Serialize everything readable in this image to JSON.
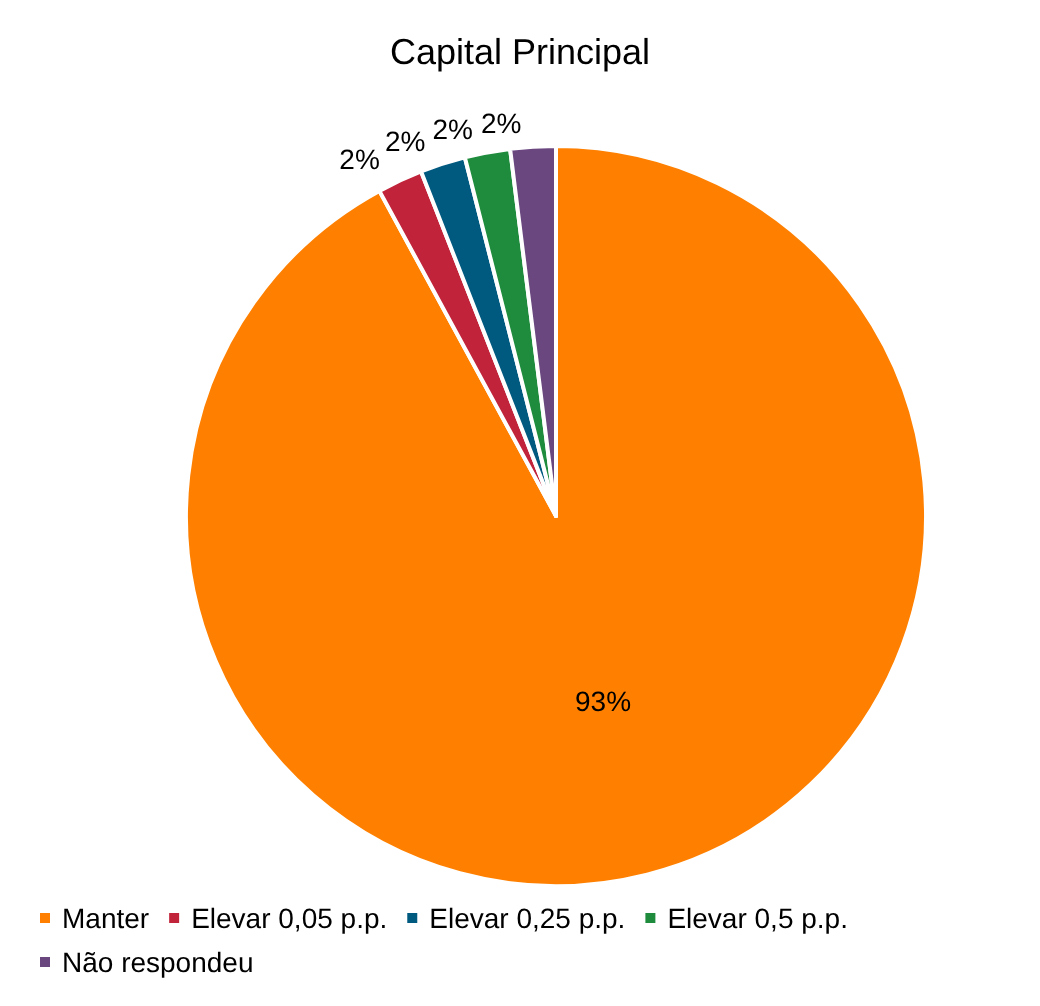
{
  "chart_data": {
    "type": "pie",
    "title": "Capital Principal",
    "categories": [
      "Manter",
      "Elevar 0,05 p.p.",
      "Elevar 0,25 p.p.",
      "Elevar 0,5 p.p.",
      "Não respondeu"
    ],
    "values": [
      93,
      2,
      2,
      2,
      2
    ],
    "colors": [
      "#ff8000",
      "#c0233a",
      "#005a80",
      "#1e8c3c",
      "#6b4780"
    ],
    "value_labels": [
      "93%",
      "2%",
      "2%",
      "2%",
      "2%"
    ],
    "legend": "bottom"
  }
}
